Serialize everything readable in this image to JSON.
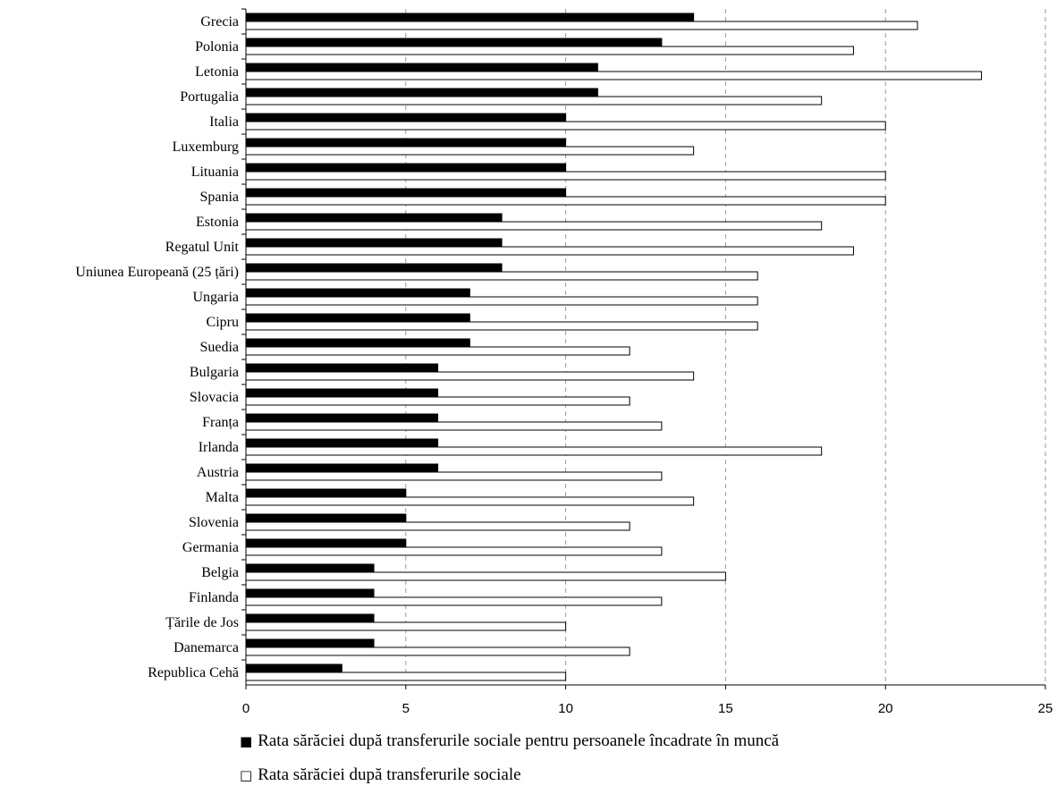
{
  "chart_data": {
    "type": "bar",
    "orientation": "horizontal",
    "categories": [
      "Grecia",
      "Polonia",
      "Letonia",
      "Portugalia",
      "Italia",
      "Luxemburg",
      "Lituania",
      "Spania",
      "Estonia",
      "Regatul Unit",
      "Uniunea Europeană (25 țări)",
      "Ungaria",
      "Cipru",
      "Suedia",
      "Bulgaria",
      "Slovacia",
      "Franța",
      "Irlanda",
      "Austria",
      "Malta",
      "Slovenia",
      "Germania",
      "Belgia",
      "Finlanda",
      "Țările de Jos",
      "Danemarca",
      "Republica Cehă"
    ],
    "series": [
      {
        "name": "Rata sărăciei după transferurile sociale pentru persoanele încadrate în muncă",
        "color": "#000000",
        "values": [
          14,
          13,
          11,
          11,
          10,
          10,
          10,
          10,
          8,
          8,
          8,
          7,
          7,
          7,
          6,
          6,
          6,
          6,
          6,
          5,
          5,
          5,
          4,
          4,
          4,
          4,
          3
        ]
      },
      {
        "name": "Rata sărăciei după transferurile sociale",
        "color": "#ffffff",
        "values": [
          21,
          19,
          23,
          18,
          20,
          14,
          20,
          20,
          18,
          19,
          16,
          16,
          16,
          12,
          14,
          12,
          13,
          18,
          13,
          14,
          12,
          13,
          15,
          13,
          10,
          12,
          10
        ]
      }
    ],
    "xlim": [
      0,
      25
    ],
    "xticks": [
      "0",
      "5",
      "10",
      "15",
      "20",
      "25"
    ],
    "grid": "vertical dashed",
    "legend_position": "bottom"
  },
  "legend": {
    "item1_symbol": "■",
    "item2_symbol": "□"
  }
}
